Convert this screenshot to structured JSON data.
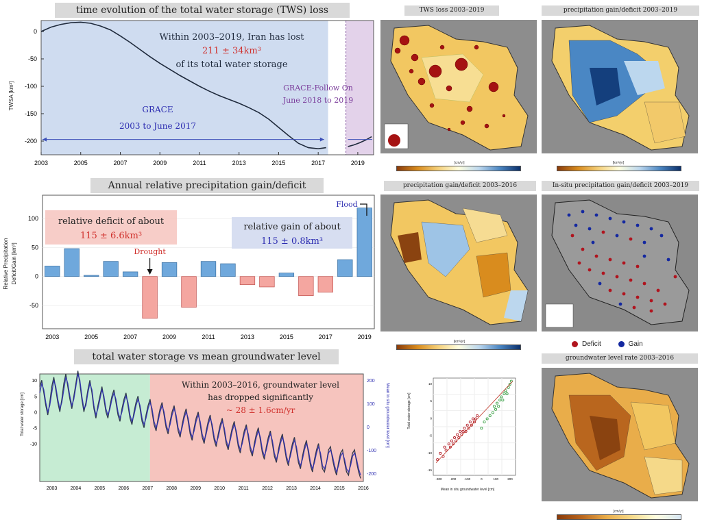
{
  "panels": {
    "tws": {
      "title": "time evolution of the total water storage (TWS) loss",
      "ylabel": "TWSA [km³]",
      "annotation_line1": "Within 2003–2019, Iran has lost",
      "annotation_value": "211 ± 34km³",
      "annotation_line3": "of its total water storage",
      "grace_label": "GRACE",
      "grace_period": "2003 to June 2017",
      "gfo_label": "GRACE-Follow On",
      "gfo_period": "June 2018 to 2019"
    },
    "precip": {
      "title": "Annual relative precipitation gain/deficit",
      "ylabel_line1": "Relative Precipitation",
      "ylabel_line2": "Deficit/Gain [km³]",
      "deficit_line1": "relative deficit of about",
      "deficit_value": "115 ± 6.6km³",
      "gain_line1": "relative gain of about",
      "gain_value": "115 ± 0.8km³",
      "drought_label": "Drought",
      "flood_label": "Flood"
    },
    "gw": {
      "title": "total water storage vs mean groundwater level",
      "ylabel_left": "Total water storage [cm]",
      "ylabel_right": "Mean in situ groundwater level [cm]",
      "annotation_line1": "Within 2003–2016, groundwater level",
      "annotation_line2": "has dropped significantly",
      "annotation_value": "~ 28 ± 1.6cm/yr"
    },
    "scatter": {
      "ylabel": "Total water storage [cm]",
      "xlabel": "Mean in situ groundwater level [cm]"
    }
  },
  "maps": {
    "m1": {
      "title": "TWS loss 2003–2019",
      "colorbar_label": "[cm/yr]"
    },
    "m2": {
      "title": "precipitation gain/deficit 2003–2019",
      "colorbar_label": "[km³/yr]"
    },
    "m3": {
      "title": "precipitation gain/deficit 2003–2016",
      "colorbar_label": "[km³/yr]"
    },
    "m4": {
      "title": "In-situ precipitation gain/deficit 2003–2019"
    },
    "m5": {
      "title": "groundwater level rate 2003–2016",
      "colorbar_label": "[cm/yr]"
    }
  },
  "legend": {
    "deficit": "Deficit",
    "gain": "Gain",
    "deficit_color": "#b0141e",
    "gain_color": "#1428a0"
  },
  "colors": {
    "grace_bg": "#cfdcf0",
    "gfo_bg": "#e3d2ea",
    "gain_bar": "#6fa8dc",
    "deficit_bar": "#f4a6a0",
    "gw_green": "#c6ecd3",
    "gw_red": "#f6c4be",
    "accent_red": "#d0312d",
    "accent_blue": "#2b2bb0"
  },
  "chart_data": [
    {
      "type": "line",
      "title": "time evolution of the total water storage (TWS) loss",
      "xlabel": "",
      "ylabel": "TWSA [km³]",
      "xlim": [
        2003,
        2019.8
      ],
      "ylim": [
        -225,
        20
      ],
      "xticks": [
        "2003",
        "2005",
        "2007",
        "2009",
        "2011",
        "2013",
        "2015",
        "2017",
        "2019"
      ],
      "yticks": [
        "0",
        "-50",
        "-100",
        "-150",
        "-200"
      ],
      "series": [
        {
          "x": [
            2003,
            2003.5,
            2004,
            2004.5,
            2005,
            2005.5,
            2006,
            2006.5,
            2007,
            2007.5,
            2008,
            2008.5,
            2009,
            2009.5,
            2010,
            2010.5,
            2011,
            2011.5,
            2012,
            2012.5,
            2013,
            2013.5,
            2014,
            2014.5,
            2015,
            2015.5,
            2016,
            2016.5,
            2017,
            2017.4
          ],
          "y": [
            0,
            8,
            13,
            16,
            17,
            15,
            10,
            3,
            -8,
            -20,
            -33,
            -46,
            -58,
            -69,
            -80,
            -90,
            -100,
            -109,
            -117,
            -124,
            -131,
            -139,
            -148,
            -160,
            -175,
            -190,
            -204,
            -212,
            -214,
            -212
          ]
        },
        {
          "x": [
            2018.5,
            2018.8,
            2019.1,
            2019.4,
            2019.7
          ],
          "y": [
            -210,
            -207,
            -203,
            -198,
            -192
          ]
        }
      ]
    },
    {
      "type": "bar",
      "title": "Annual relative precipitation gain/deficit",
      "ylabel": "Relative Precipitation Deficit/Gain [km³]",
      "ylim": [
        -90,
        140
      ],
      "xticks": [
        "2003",
        "2005",
        "2007",
        "2009",
        "2011",
        "2013",
        "2015",
        "2017",
        "2019"
      ],
      "yticks": [
        "100",
        "50",
        "0",
        "-50"
      ],
      "categories": [
        "2003",
        "2004",
        "2005",
        "2006",
        "2007",
        "2008",
        "2009",
        "2010",
        "2011",
        "2012",
        "2013",
        "2014",
        "2015",
        "2016",
        "2017",
        "2018",
        "2019"
      ],
      "values": [
        18,
        48,
        2,
        26,
        8,
        -72,
        24,
        -53,
        26,
        22,
        -14,
        -18,
        6,
        -33,
        -27,
        29,
        118
      ]
    },
    {
      "type": "line",
      "title": "total water storage vs mean groundwater level",
      "ylabel": "Total water storage [cm]",
      "ylabel_right": "Mean in situ groundwater level [cm]",
      "xlim": [
        2003,
        2016.5
      ],
      "yticks_left": [
        "10",
        "5",
        "0",
        "-5",
        "-10"
      ],
      "yticks_right": [
        "200",
        "100",
        "0",
        "-100",
        "-200"
      ],
      "xticks": [
        "2003",
        "2004",
        "2005",
        "2006",
        "2007",
        "2008",
        "2009",
        "2010",
        "2011",
        "2012",
        "2013",
        "2014",
        "2015",
        "2016"
      ],
      "series": [
        {
          "values": [
            8,
            10,
            6,
            2,
            -1,
            3,
            8,
            11,
            7,
            3,
            0,
            4,
            9,
            12,
            8,
            4,
            1,
            5,
            9,
            13,
            9,
            4,
            0,
            3,
            7,
            10,
            6,
            1,
            -2,
            2,
            5,
            8,
            4,
            0,
            -2,
            2,
            5,
            7,
            3,
            -1,
            -3,
            1,
            4,
            6,
            2,
            -2,
            -4,
            0,
            3,
            5,
            1,
            -3,
            -5,
            -1,
            2,
            4,
            0,
            -4,
            -6,
            -2,
            1,
            3,
            -1,
            -5,
            -7,
            -3,
            0,
            2,
            -2,
            -6,
            -8,
            -4,
            -1,
            1,
            -3,
            -7,
            -9,
            -5,
            -2,
            0,
            -4,
            -8,
            -10,
            -6,
            -3,
            -1,
            -5,
            -9,
            -11,
            -7,
            -4,
            -2,
            -6,
            -10,
            -12,
            -8,
            -5,
            -3,
            -7,
            -11,
            -13,
            -9,
            -6,
            -4,
            -8,
            -12,
            -14,
            -10,
            -7,
            -5,
            -9,
            -13,
            -15,
            -11,
            -8,
            -6,
            -10,
            -14,
            -16,
            -12,
            -9,
            -7,
            -11,
            -15,
            -17,
            -13,
            -10,
            -8,
            -12,
            -16,
            -18,
            -14,
            -11,
            -9,
            -13,
            -17,
            -19,
            -15,
            -12,
            -10,
            -14,
            -18,
            -19,
            -16,
            -12,
            -11,
            -15,
            -18,
            -20,
            -16,
            -13,
            -12,
            -16,
            -19,
            -20,
            -16,
            -13,
            -12,
            -16,
            -19,
            -21
          ]
        },
        {
          "values": [
            6,
            9,
            7,
            3,
            0,
            2,
            6,
            10,
            8,
            4,
            1,
            3,
            7,
            11,
            9,
            5,
            2,
            4,
            8,
            12,
            10,
            5,
            1,
            2,
            6,
            9,
            7,
            2,
            -1,
            1,
            4,
            7,
            5,
            1,
            -1,
            1,
            4,
            6,
            4,
            0,
            -2,
            0,
            3,
            5,
            3,
            -1,
            -3,
            -1,
            2,
            4,
            2,
            -2,
            -4,
            -2,
            1,
            3,
            1,
            -3,
            -5,
            -3,
            0,
            2,
            0,
            -4,
            -6,
            -4,
            -1,
            1,
            -1,
            -5,
            -7,
            -5,
            -2,
            0,
            -2,
            -6,
            -8,
            -6,
            -3,
            -1,
            -3,
            -7,
            -9,
            -7,
            -4,
            -2,
            -4,
            -8,
            -10,
            -8,
            -5,
            -3,
            -5,
            -9,
            -11,
            -9,
            -6,
            -4,
            -6,
            -10,
            -12,
            -10,
            -7,
            -5,
            -7,
            -11,
            -13,
            -11,
            -8,
            -6,
            -8,
            -12,
            -14,
            -12,
            -9,
            -7,
            -9,
            -13,
            -15,
            -13,
            -10,
            -8,
            -10,
            -14,
            -16,
            -14,
            -11,
            -9,
            -11,
            -15,
            -17,
            -15,
            -12,
            -10,
            -12,
            -16,
            -18,
            -16,
            -13,
            -11,
            -13,
            -17,
            -18,
            -16,
            -13,
            -12,
            -14,
            -17,
            -19,
            -17,
            -14,
            -13,
            -15,
            -18,
            -19,
            -17,
            -14,
            -13,
            -15,
            -18,
            -20
          ]
        }
      ]
    },
    {
      "type": "scatter",
      "xlabel": "Mean in situ groundwater level [cm]",
      "ylabel": "Total water storage [cm]",
      "xticks": [
        "-300",
        "-200",
        "-100",
        "0",
        "100",
        "200"
      ],
      "yticks": [
        "10",
        "5",
        "0",
        "-5",
        "-10",
        "-15"
      ],
      "xlim": [
        -320,
        260
      ],
      "ylim": [
        -17,
        14
      ],
      "series": [
        {
          "name": "",
          "x": [
            -290,
            -270,
            -250,
            -240,
            -230,
            -210,
            -200,
            -190,
            -180,
            -170,
            -160,
            -150,
            -140,
            -130,
            -120,
            -110,
            -100,
            -90,
            -80,
            -70,
            -60,
            -50,
            -40,
            -30,
            -20,
            -10
          ],
          "y": [
            -12,
            -10,
            -11,
            -8,
            -9,
            -7,
            -8,
            -6,
            -7,
            -5,
            -6,
            -4,
            -5,
            -3,
            -4,
            -3,
            -2,
            -3,
            -1,
            -2,
            0,
            -1,
            1,
            0,
            1,
            2
          ]
        },
        {
          "name": "",
          "x": [
            20,
            40,
            60,
            80,
            100,
            110,
            120,
            130,
            140,
            150,
            160,
            170,
            180,
            190,
            200,
            210,
            220,
            230
          ],
          "y": [
            -2,
            0,
            1,
            2,
            3,
            5,
            4,
            6,
            5,
            7,
            8,
            7,
            9,
            10,
            9,
            11,
            12,
            13
          ]
        }
      ]
    }
  ]
}
